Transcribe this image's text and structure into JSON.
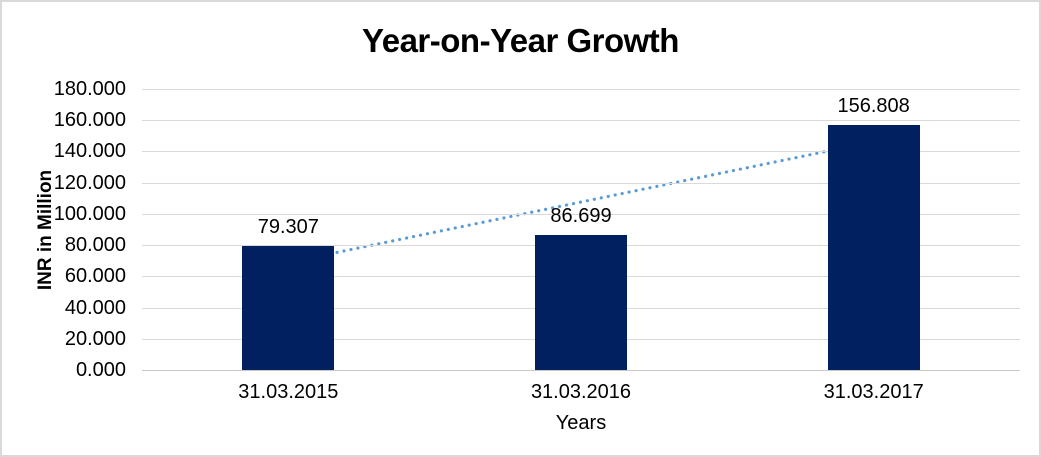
{
  "chart_data": {
    "type": "bar",
    "title": "Year-on-Year Growth",
    "xlabel": "Years",
    "ylabel": "INR in Million",
    "categories": [
      "31.03.2015",
      "31.03.2016",
      "31.03.2017"
    ],
    "values": [
      79.307,
      86.699,
      156.808
    ],
    "data_labels": [
      "79.307",
      "86.699",
      "156.808"
    ],
    "y_tick_values": [
      0,
      20,
      40,
      60,
      80,
      100,
      120,
      140,
      160,
      180
    ],
    "y_tick_labels": [
      "0.000",
      "20.000",
      "40.000",
      "60.000",
      "80.000",
      "100.000",
      "120.000",
      "140.000",
      "160.000",
      "180.000"
    ],
    "ylim": [
      0,
      180
    ],
    "grid": true,
    "legend": "none",
    "bar_color": "#002060",
    "trendline": {
      "type": "linear",
      "style": "dotted",
      "color": "#5B9BD5",
      "start_value": 68.9,
      "end_value": 146.3
    }
  },
  "colors": {
    "background": "#FFFFFF",
    "border": "#D9D9D9",
    "gridline": "#D9D9D9",
    "axis_line": "#C8C8C8",
    "text": "#000000"
  }
}
